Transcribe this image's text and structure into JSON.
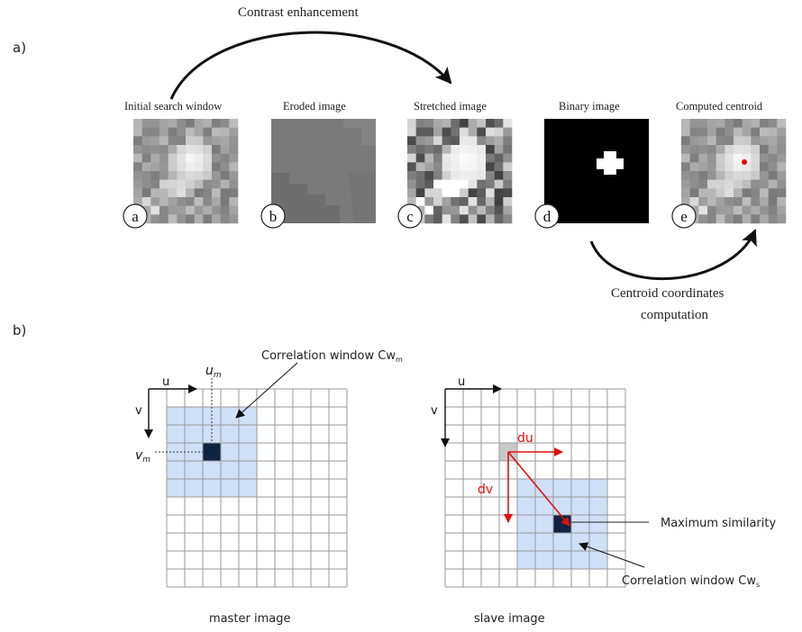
{
  "panel_a": {
    "label": "a)",
    "top_arrow_label": "Contrast enhancement",
    "bottom_arrow_label_line1": "Centroid coordinates",
    "bottom_arrow_label_line2": "computation",
    "steps": [
      {
        "title": "Initial search window",
        "badge": "a"
      },
      {
        "title": "Eroded image",
        "badge": "b"
      },
      {
        "title": "Stretched image",
        "badge": "c"
      },
      {
        "title": "Binary image",
        "badge": "d"
      },
      {
        "title": "Computed centroid",
        "badge": "e"
      }
    ],
    "centroid_color": "#e00000"
  },
  "panel_b": {
    "label": "b)",
    "master": {
      "caption": "master image",
      "axis_u": "u",
      "axis_v": "v",
      "um_label": "u",
      "um_sub": "m",
      "vm_label": "v",
      "vm_sub": "m",
      "window_label": "Correlation window Cw",
      "window_sub": "m"
    },
    "slave": {
      "caption": "slave image",
      "axis_u": "u",
      "axis_v": "v",
      "du_label": "du",
      "dv_label": "dv",
      "max_label": "Maximum similarity",
      "window_label": "Correlation window Cw",
      "window_sub": "s"
    },
    "window_color": "#cfe0f7",
    "center_color": "#0f2340",
    "displacement_color": "#e01010"
  }
}
